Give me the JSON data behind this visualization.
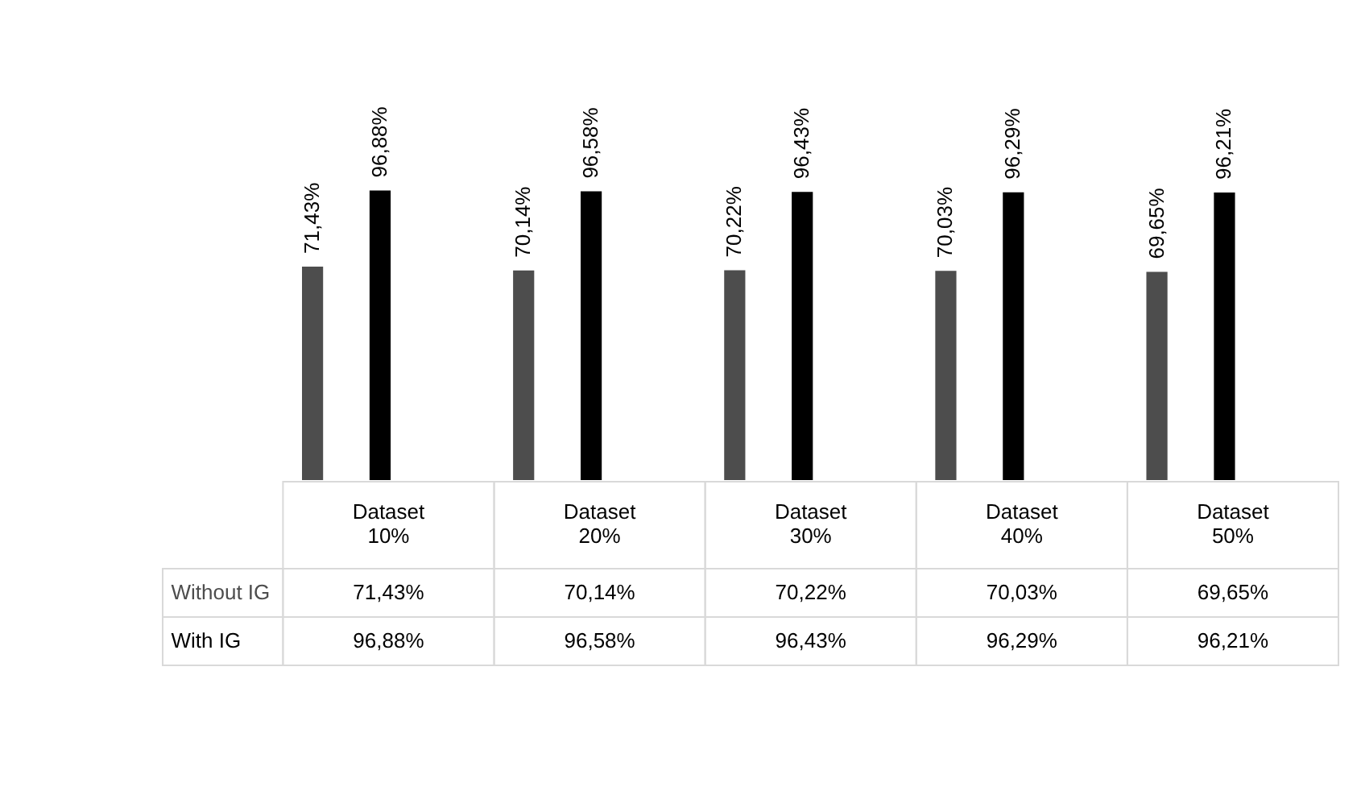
{
  "chart_data": {
    "type": "bar",
    "categories": [
      "Dataset 10%",
      "Dataset 20%",
      "Dataset 30%",
      "Dataset 40%",
      "Dataset 50%"
    ],
    "series": [
      {
        "name": "Without IG",
        "color": "#4d4d4d",
        "values": [
          71.43,
          70.14,
          70.22,
          70.03,
          69.65
        ],
        "value_labels": [
          "71,43%",
          "70,14%",
          "70,22%",
          "70,03%",
          "69,65%"
        ]
      },
      {
        "name": "With IG",
        "color": "#000000",
        "values": [
          96.88,
          96.58,
          96.43,
          96.29,
          96.21
        ],
        "value_labels": [
          "96,88%",
          "96,58%",
          "96,43%",
          "96,29%",
          "96,21%"
        ]
      }
    ],
    "legend": false,
    "grid": false
  }
}
